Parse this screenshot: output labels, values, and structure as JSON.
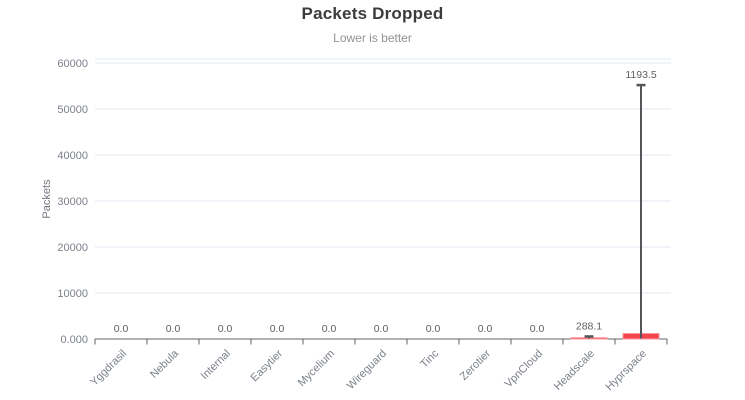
{
  "window": {
    "background": "#ffffff"
  },
  "chart_data": {
    "type": "bar",
    "title": "Packets Dropped",
    "subtitle": "Lower is better",
    "ylabel": "Packets",
    "xlabel": "",
    "legend_position": "none",
    "grid": true,
    "ylim": [
      0,
      61000
    ],
    "categories": [
      "Yggdrasil",
      "Nebula",
      "Internal",
      "Easytier",
      "Mycelium",
      "Wireguard",
      "Tinc",
      "Zerotier",
      "VpnCloud",
      "Headscale",
      "Hyprspace"
    ],
    "series": [
      {
        "name": "Packets Dropped",
        "values": [
          0.0,
          0.0,
          0.0,
          0.0,
          0.0,
          0.0,
          0.0,
          0.0,
          0.0,
          288.1,
          1193.5
        ]
      }
    ],
    "value_labels": [
      "0.0",
      "0.0",
      "0.0",
      "0.0",
      "0.0",
      "0.0",
      "0.0",
      "0.0",
      "0.0",
      "288.1",
      "1193.5"
    ],
    "error_high": [
      0,
      0,
      0,
      0,
      0,
      0,
      0,
      0,
      0,
      550,
      55200
    ],
    "y_ticks": [
      {
        "value": 0,
        "label": "0.000"
      },
      {
        "value": 10000,
        "label": "10000"
      },
      {
        "value": 20000,
        "label": "20000"
      },
      {
        "value": 30000,
        "label": "30000"
      },
      {
        "value": 40000,
        "label": "40000"
      },
      {
        "value": 50000,
        "label": "50000"
      },
      {
        "value": 60000,
        "label": "60000"
      }
    ],
    "colors": {
      "bar_fill": "#f4444e",
      "bar_stroke": "#f9969c",
      "error_bar": "#54565a",
      "axis_line": "#5f6368",
      "grid_line": "#e2e7f1",
      "tick_text": "#7b8089",
      "data_label": "#5f6063",
      "title": "#3c3c3c",
      "subtitle": "#8f9296",
      "axis_label": "#6f747c"
    }
  }
}
